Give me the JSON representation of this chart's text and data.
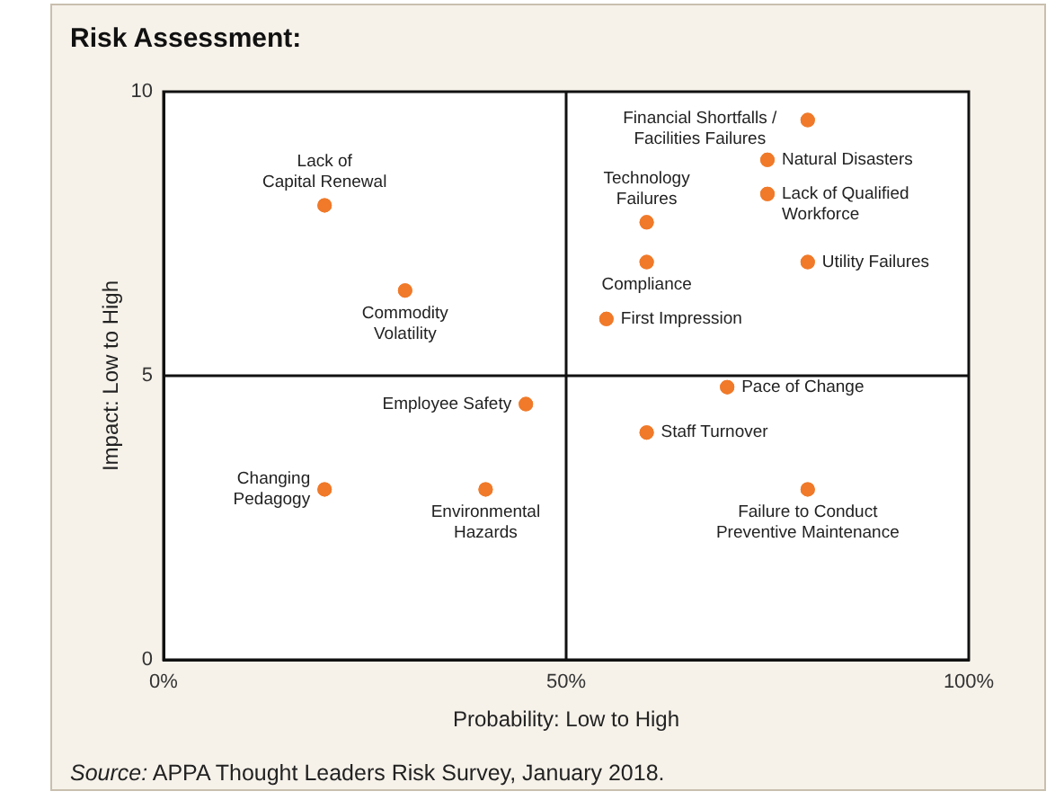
{
  "chart_data": {
    "type": "scatter",
    "title": "Risk Assessment:",
    "xlabel": "Probability: Low to High",
    "ylabel": "Impact: Low to High",
    "x": [
      20,
      30,
      45,
      20,
      40,
      80,
      75,
      75,
      60,
      80,
      60,
      55,
      70,
      60,
      80
    ],
    "series": [
      {
        "color": "#f07a2a",
        "values": [
          8,
          6.5,
          4.5,
          3,
          3,
          9.5,
          8.8,
          8.2,
          7.7,
          7,
          7,
          6,
          4.8,
          4,
          3
        ]
      }
    ],
    "xlim": [
      0,
      100
    ],
    "xticks": [
      {
        "value": 0,
        "label": "0%"
      },
      {
        "value": 50,
        "label": "50%"
      },
      {
        "value": 100,
        "label": "100%"
      }
    ],
    "ylim": [
      0,
      10
    ],
    "yticks": [
      0,
      5,
      10
    ],
    "ref_lines": [
      {
        "axis": "x",
        "value": 50
      },
      {
        "axis": "y",
        "value": 5
      }
    ],
    "legend": false,
    "marker": "circle",
    "annotations": [
      {
        "text": "Lack of\nCapital Renewal",
        "x": 20,
        "y": 8
      },
      {
        "text": "Commodity\nVolatility",
        "x": 30,
        "y": 6.5
      },
      {
        "text": "Employee Safety",
        "x": 45,
        "y": 4.5
      },
      {
        "text": "Changing\nPedagogy",
        "x": 20,
        "y": 3
      },
      {
        "text": "Environmental\nHazards",
        "x": 40,
        "y": 3
      },
      {
        "text": "Financial Shortfalls /\nFacilities Failures",
        "x": 80,
        "y": 9.5
      },
      {
        "text": "Natural Disasters",
        "x": 75,
        "y": 8.8
      },
      {
        "text": "Lack of Qualified\nWorkforce",
        "x": 75,
        "y": 8.2
      },
      {
        "text": "Technology\nFailures",
        "x": 60,
        "y": 7.7
      },
      {
        "text": "Utility Failures",
        "x": 80,
        "y": 7
      },
      {
        "text": "Compliance",
        "x": 60,
        "y": 7
      },
      {
        "text": "First Impression",
        "x": 55,
        "y": 6
      },
      {
        "text": "Pace of Change",
        "x": 70,
        "y": 4.8
      },
      {
        "text": "Staff Turnover",
        "x": 60,
        "y": 4
      },
      {
        "text": "Failure to Conduct\nPreventive Maintenance",
        "x": 80,
        "y": 3
      },
      "Source: APPA Thought Leaders Risk Survey, January 2018."
    ]
  }
}
